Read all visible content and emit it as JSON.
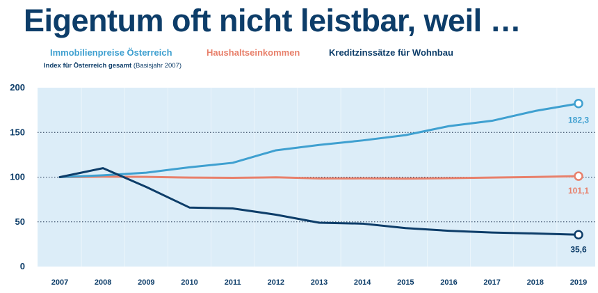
{
  "title": "Eigentum oft nicht leistbar, weil …",
  "subtitle_bold": "Index für Österreich gesamt",
  "subtitle_rest": " (Basisjahr 2007)",
  "chart_data": {
    "type": "line",
    "x": [
      "2007",
      "2008",
      "2009",
      "2010",
      "2011",
      "2012",
      "2013",
      "2014",
      "2015",
      "2016",
      "2017",
      "2018",
      "2019"
    ],
    "ylim": [
      0,
      200
    ],
    "yticks": [
      0,
      50,
      100,
      150,
      200
    ],
    "grid": "dotted horizontal at 50, 100, 150",
    "legend": "top",
    "series": [
      {
        "name": "Immobilienpreise Österreich",
        "color": "#3fa0d0",
        "values": [
          100,
          102,
          105,
          111,
          116,
          130,
          136,
          141,
          147,
          157,
          163,
          174,
          182.3
        ],
        "end_label": "182,3"
      },
      {
        "name": "Haushaltseinkommen",
        "color": "#e8806b",
        "values": [
          100,
          100.5,
          100.3,
          99.5,
          99.2,
          99.8,
          98.5,
          98.6,
          98.3,
          98.8,
          99.5,
          100.2,
          101.1
        ],
        "end_label": "101,1"
      },
      {
        "name": "Kreditzinssätze für Wohnbau",
        "color": "#0d3d69",
        "values": [
          100,
          110,
          89,
          66,
          65,
          58,
          49,
          48,
          43,
          40,
          38,
          37,
          35.6
        ],
        "end_label": "35,6"
      }
    ]
  }
}
